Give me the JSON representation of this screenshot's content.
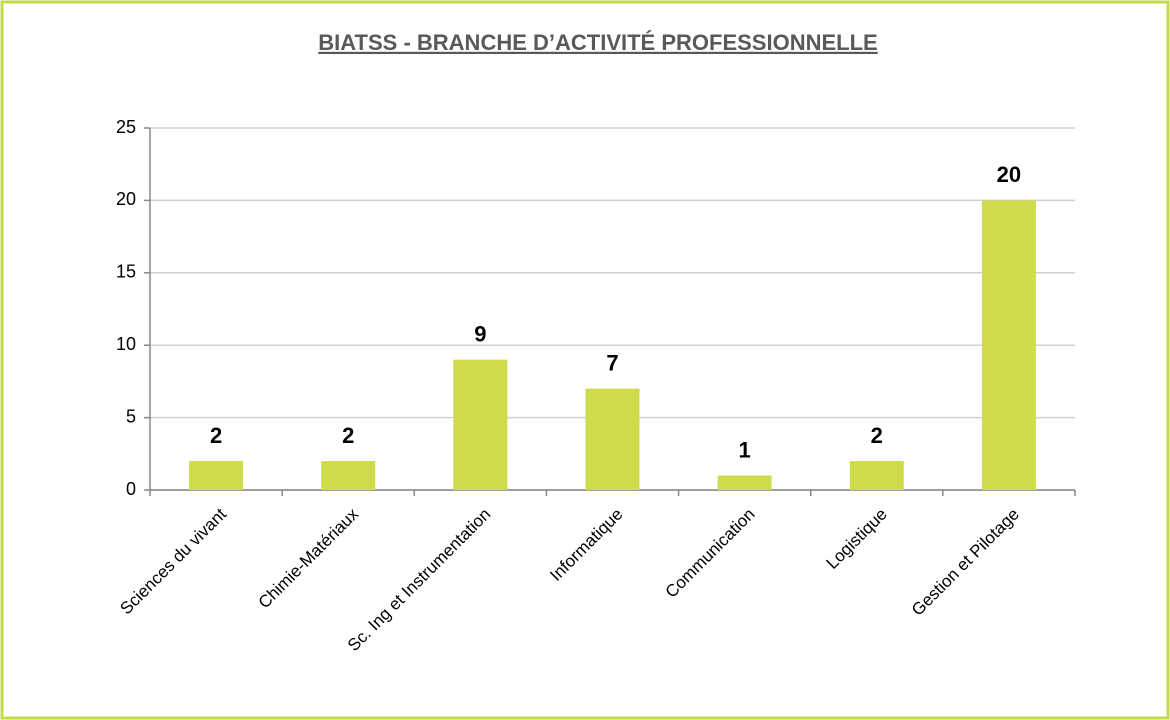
{
  "chart_data": {
    "type": "bar",
    "title": "BIATSS - BRANCHE D’ACTIVITÉ PROFESSIONNELLE",
    "categories": [
      "Sciences du vivant",
      "Chimie-Matériaux",
      "Sc. Ing et Instrumentation",
      "Informatique",
      "Communication",
      "Logistique",
      "Gestion et Pilotage"
    ],
    "values": [
      2,
      2,
      9,
      7,
      1,
      2,
      20
    ],
    "color": "#cfdb4b",
    "ylim": [
      0,
      25
    ],
    "yticks": [
      0,
      5,
      10,
      15,
      20,
      25
    ],
    "grid": true
  }
}
